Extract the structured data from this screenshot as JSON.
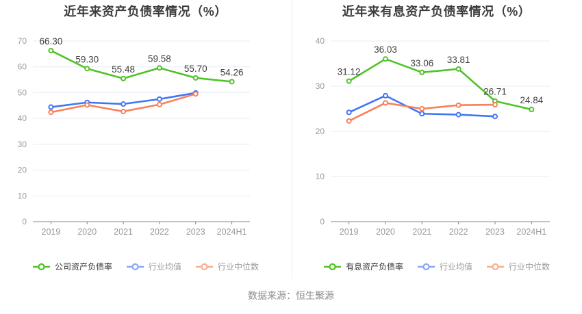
{
  "footer": {
    "source_note": "数据来源：恒生聚源"
  },
  "chart_data": [
    {
      "type": "line",
      "title": "近年来资产负债率情况（%）",
      "categories": [
        "2019",
        "2020",
        "2021",
        "2022",
        "2023",
        "2024H1"
      ],
      "ylim": [
        0,
        70
      ],
      "yticks": [
        0,
        10,
        20,
        30,
        40,
        50,
        60,
        70
      ],
      "grid": "horizontal-only",
      "legend_position": "bottom",
      "series": [
        {
          "name": "公司资产负债率",
          "color": "#4fc325",
          "legend_marker_color": "#4fc325",
          "legend_text_color": "#333333",
          "data_labels": true,
          "values": [
            66.3,
            59.3,
            55.48,
            59.58,
            55.7,
            54.26
          ]
        },
        {
          "name": "行业均值",
          "color": "#4076f3",
          "legend_marker_color": "#87a8f7",
          "legend_text_color": "#999999",
          "data_labels": false,
          "values": [
            44.4,
            46.2,
            45.6,
            47.5,
            49.9,
            null
          ]
        },
        {
          "name": "行业中位数",
          "color": "#f8805a",
          "legend_marker_color": "#f9ae8e",
          "legend_text_color": "#999999",
          "data_labels": false,
          "values": [
            42.4,
            45.2,
            42.7,
            45.4,
            49.5,
            null
          ]
        }
      ]
    },
    {
      "type": "line",
      "title": "近年来有息资产负债率情况（%）",
      "categories": [
        "2019",
        "2020",
        "2021",
        "2022",
        "2023",
        "2024H1"
      ],
      "ylim": [
        0,
        40
      ],
      "yticks": [
        0,
        10,
        20,
        30,
        40
      ],
      "grid": "horizontal-only",
      "legend_position": "bottom",
      "series": [
        {
          "name": "有息资产负债率",
          "color": "#4fc325",
          "legend_marker_color": "#4fc325",
          "legend_text_color": "#333333",
          "data_labels": true,
          "values": [
            31.12,
            36.03,
            33.06,
            33.81,
            26.71,
            24.84
          ]
        },
        {
          "name": "行业均值",
          "color": "#4076f3",
          "legend_marker_color": "#87a8f7",
          "legend_text_color": "#999999",
          "data_labels": false,
          "values": [
            24.2,
            27.9,
            23.9,
            23.7,
            23.3,
            null
          ]
        },
        {
          "name": "行业中位数",
          "color": "#f8805a",
          "legend_marker_color": "#f9ae8e",
          "legend_text_color": "#999999",
          "data_labels": false,
          "values": [
            22.3,
            26.3,
            25.0,
            25.8,
            25.9,
            null
          ]
        }
      ]
    }
  ]
}
